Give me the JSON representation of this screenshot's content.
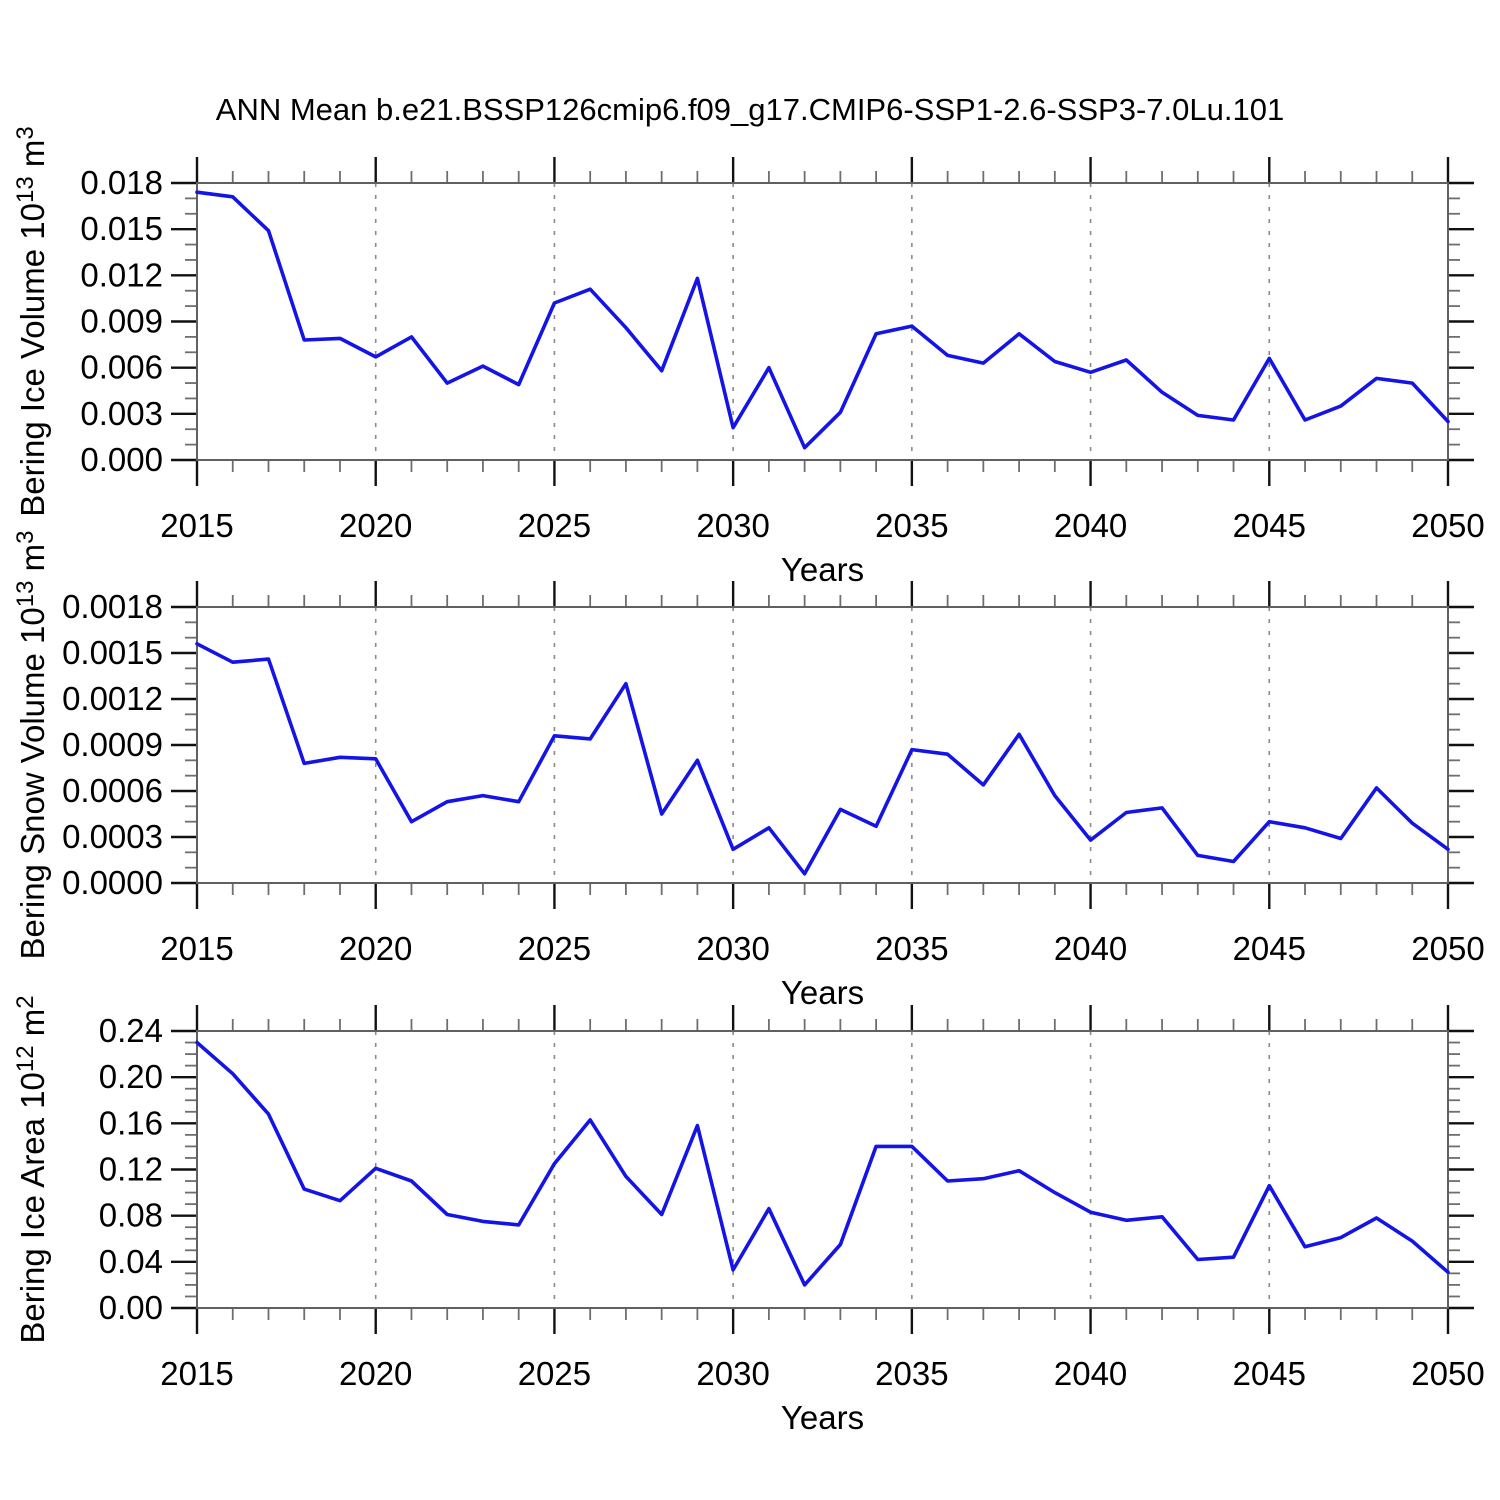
{
  "title": "ANN Mean b.e21.BSSP126cmip6.f09_g17.CMIP6-SSP1-2.6-SSP3-7.0Lu.101",
  "style": {
    "line_color": "#1414e6",
    "frame_color": "#606060",
    "major_tick_color": "#111111",
    "minor_tick_color": "#6e6e6e",
    "grid_color": "#8a8a8a",
    "text_color": "#000000",
    "background": "#ffffff"
  },
  "x_axis": {
    "label": "Years",
    "start": 2015,
    "end": 2050,
    "major_tick_labels": [
      "2015",
      "2020",
      "2025",
      "2030",
      "2035",
      "2040",
      "2045",
      "2050"
    ],
    "gridline_years": [
      2020,
      2025,
      2030,
      2035,
      2040,
      2045
    ]
  },
  "years": [
    2015,
    2016,
    2017,
    2018,
    2019,
    2020,
    2021,
    2022,
    2023,
    2024,
    2025,
    2026,
    2027,
    2028,
    2029,
    2030,
    2031,
    2032,
    2033,
    2034,
    2035,
    2036,
    2037,
    2038,
    2039,
    2040,
    2041,
    2042,
    2043,
    2044,
    2045,
    2046,
    2047,
    2048,
    2049,
    2050
  ],
  "chart_data": [
    {
      "type": "line",
      "name": "bering-ice-volume",
      "ylabel": "Bering Ice Volume 10^13 m^3",
      "ylabel_segments": [
        {
          "t": "Bering Ice Volume 10"
        },
        {
          "t": "13",
          "sup": true
        },
        {
          "t": " m"
        },
        {
          "t": "3",
          "sup": true
        }
      ],
      "xlabel": "Years",
      "ylim": [
        0,
        0.018
      ],
      "ymajor_step": 0.003,
      "yminor_divs": 3,
      "y_decimals": 3,
      "values": [
        0.0174,
        0.0171,
        0.0149,
        0.0078,
        0.0079,
        0.0067,
        0.008,
        0.005,
        0.0061,
        0.0049,
        0.0102,
        0.0111,
        0.0086,
        0.0058,
        0.0118,
        0.0021,
        0.006,
        0.0008,
        0.0031,
        0.0082,
        0.0087,
        0.0068,
        0.0063,
        0.0082,
        0.0064,
        0.0057,
        0.0065,
        0.0044,
        0.0029,
        0.0026,
        0.0066,
        0.0026,
        0.0035,
        0.0053,
        0.005,
        0.0025
      ]
    },
    {
      "type": "line",
      "name": "bering-snow-volume",
      "ylabel": "Bering Snow Volume 10^13 m^3",
      "ylabel_segments": [
        {
          "t": "Bering Snow Volume 10"
        },
        {
          "t": "13",
          "sup": true
        },
        {
          "t": " m"
        },
        {
          "t": "3",
          "sup": true
        }
      ],
      "xlabel": "Years",
      "ylim": [
        0,
        0.0018
      ],
      "ymajor_step": 0.0003,
      "yminor_divs": 3,
      "y_decimals": 4,
      "values": [
        0.00156,
        0.00144,
        0.00146,
        0.00078,
        0.00082,
        0.00081,
        0.0004,
        0.00053,
        0.00057,
        0.00053,
        0.00096,
        0.00094,
        0.0013,
        0.00045,
        0.0008,
        0.00022,
        0.00036,
        6e-05,
        0.00048,
        0.00037,
        0.00087,
        0.00084,
        0.00064,
        0.00097,
        0.00057,
        0.00028,
        0.00046,
        0.00049,
        0.00018,
        0.00014,
        0.0004,
        0.00036,
        0.00029,
        0.00062,
        0.00039,
        0.00022
      ]
    },
    {
      "type": "line",
      "name": "bering-ice-area",
      "ylabel": "Bering Ice Area 10^12 m^2",
      "ylabel_segments": [
        {
          "t": "Bering Ice Area 10"
        },
        {
          "t": "12",
          "sup": true
        },
        {
          "t": " m"
        },
        {
          "t": "2",
          "sup": true
        }
      ],
      "xlabel": "Years",
      "ylim": [
        0,
        0.24
      ],
      "ymajor_step": 0.04,
      "yminor_divs": 4,
      "y_decimals": 2,
      "values": [
        0.23,
        0.203,
        0.168,
        0.103,
        0.093,
        0.121,
        0.11,
        0.081,
        0.075,
        0.072,
        0.125,
        0.163,
        0.114,
        0.081,
        0.158,
        0.033,
        0.086,
        0.02,
        0.055,
        0.14,
        0.14,
        0.11,
        0.112,
        0.119,
        0.1,
        0.083,
        0.076,
        0.079,
        0.042,
        0.044,
        0.106,
        0.053,
        0.061,
        0.078,
        0.058,
        0.031
      ]
    }
  ]
}
